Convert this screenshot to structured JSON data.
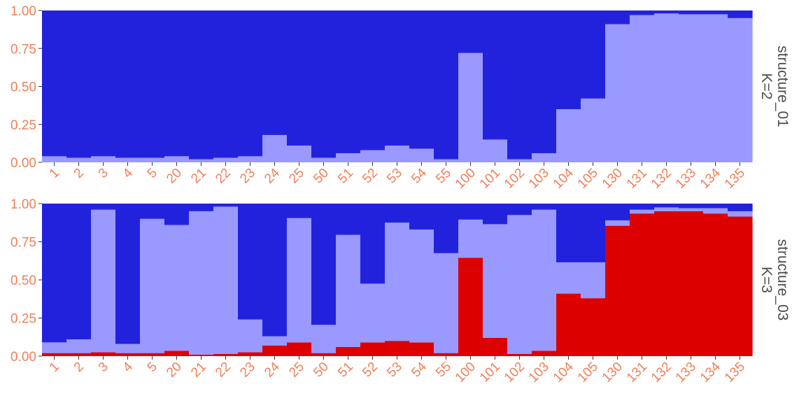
{
  "colors": {
    "dark_blue": "#2222dd",
    "light_blue": "#9999ff",
    "red": "#dd0000",
    "tick_label": "#f07f56",
    "strip_text": "#4d4d4d"
  },
  "chart_data": [
    {
      "type": "bar",
      "stacked": true,
      "facet_label_1": "structure_01",
      "facet_label_2": "K=2",
      "ylim": [
        0,
        1
      ],
      "yticks": [
        "0.00",
        "0.25",
        "0.50",
        "0.75",
        "1.00"
      ],
      "categories": [
        "1",
        "2",
        "3",
        "4",
        "5",
        "20",
        "21",
        "22",
        "23",
        "24",
        "25",
        "50",
        "51",
        "52",
        "53",
        "54",
        "55",
        "100",
        "101",
        "102",
        "103",
        "104",
        "105",
        "130",
        "131",
        "132",
        "133",
        "134",
        "135"
      ],
      "series": [
        {
          "color": "#9999ff",
          "values": [
            0.04,
            0.03,
            0.04,
            0.03,
            0.03,
            0.04,
            0.02,
            0.03,
            0.04,
            0.18,
            0.11,
            0.03,
            0.06,
            0.08,
            0.11,
            0.09,
            0.02,
            0.72,
            0.15,
            0.02,
            0.06,
            0.35,
            0.42,
            0.91,
            0.97,
            0.98,
            0.975,
            0.975,
            0.95
          ]
        },
        {
          "color": "#2222dd",
          "values": [
            0.96,
            0.97,
            0.96,
            0.97,
            0.97,
            0.96,
            0.98,
            0.97,
            0.96,
            0.82,
            0.89,
            0.97,
            0.94,
            0.92,
            0.89,
            0.91,
            0.98,
            0.28,
            0.85,
            0.98,
            0.94,
            0.65,
            0.58,
            0.09,
            0.03,
            0.02,
            0.025,
            0.025,
            0.05
          ]
        }
      ]
    },
    {
      "type": "bar",
      "stacked": true,
      "facet_label_1": "structure_03",
      "facet_label_2": "K=3",
      "ylim": [
        0,
        1
      ],
      "yticks": [
        "0.00",
        "0.25",
        "0.50",
        "0.75",
        "1.00"
      ],
      "categories": [
        "1",
        "2",
        "3",
        "4",
        "5",
        "20",
        "21",
        "22",
        "23",
        "24",
        "25",
        "50",
        "51",
        "52",
        "53",
        "54",
        "55",
        "100",
        "101",
        "102",
        "103",
        "104",
        "105",
        "130",
        "131",
        "132",
        "133",
        "134",
        "135"
      ],
      "series": [
        {
          "color": "#dd0000",
          "values": [
            0.02,
            0.02,
            0.025,
            0.02,
            0.02,
            0.035,
            0.01,
            0.015,
            0.025,
            0.07,
            0.09,
            0.02,
            0.06,
            0.09,
            0.1,
            0.09,
            0.02,
            0.645,
            0.12,
            0.015,
            0.035,
            0.41,
            0.38,
            0.855,
            0.935,
            0.95,
            0.95,
            0.935,
            0.915
          ]
        },
        {
          "color": "#9999ff",
          "values": [
            0.07,
            0.09,
            0.935,
            0.06,
            0.88,
            0.825,
            0.94,
            0.965,
            0.215,
            0.06,
            0.815,
            0.185,
            0.735,
            0.385,
            0.775,
            0.74,
            0.655,
            0.25,
            0.745,
            0.91,
            0.925,
            0.205,
            0.235,
            0.035,
            0.025,
            0.025,
            0.02,
            0.035,
            0.035
          ]
        },
        {
          "color": "#2222dd",
          "values": [
            0.91,
            0.89,
            0.04,
            0.92,
            0.1,
            0.14,
            0.05,
            0.02,
            0.76,
            0.87,
            0.095,
            0.795,
            0.205,
            0.525,
            0.125,
            0.17,
            0.325,
            0.105,
            0.135,
            0.075,
            0.04,
            0.385,
            0.385,
            0.11,
            0.04,
            0.025,
            0.03,
            0.03,
            0.05
          ]
        }
      ]
    }
  ]
}
